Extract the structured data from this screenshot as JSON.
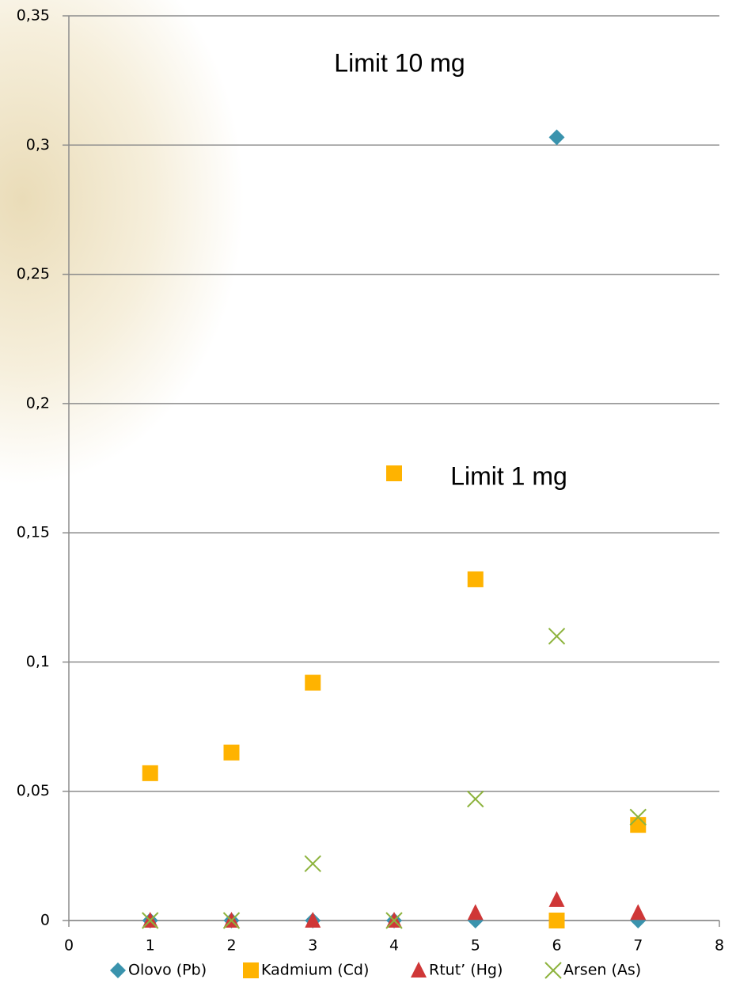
{
  "chart_data": {
    "type": "scatter",
    "annotations": [
      "Limit 10 mg",
      "Limit 1 mg"
    ],
    "x": [
      1,
      2,
      3,
      4,
      5,
      6,
      7
    ],
    "series": [
      {
        "name": "Olovo (Pb)",
        "color": "#3a93ad",
        "marker": "diamond",
        "values": [
          0,
          0,
          0,
          0,
          0,
          0.303,
          0
        ]
      },
      {
        "name": "Kadmium (Cd)",
        "color": "#ffb300",
        "marker": "square",
        "values": [
          0.057,
          0.065,
          0.092,
          0.173,
          0.132,
          0,
          0.037
        ]
      },
      {
        "name": "Rtut’ (Hg)",
        "color": "#cf3737",
        "marker": "triangle",
        "values": [
          0,
          0,
          0,
          0,
          0.003,
          0.008,
          0.003
        ]
      },
      {
        "name": "Arsen (As)",
        "color": "#8db33d",
        "marker": "x",
        "values": [
          0,
          0,
          0.022,
          0,
          0.047,
          0.11,
          0.04
        ]
      }
    ],
    "xlim": [
      0,
      8
    ],
    "xticks": [
      0,
      1,
      2,
      3,
      4,
      5,
      6,
      7,
      8
    ],
    "ylim": [
      0,
      0.35
    ],
    "yticks": [
      0,
      {
        "value": 0.05,
        "label": "0,05"
      },
      {
        "value": 0.1,
        "label": "0,1"
      },
      {
        "value": 0.15,
        "label": "0,15"
      },
      {
        "value": 0.2,
        "label": "0,2"
      },
      {
        "value": 0.25,
        "label": "0,25"
      },
      {
        "value": 0.3,
        "label": "0,3"
      },
      {
        "value": 0.35,
        "label": "0,35"
      }
    ],
    "grid": true,
    "legend": "bottom"
  }
}
